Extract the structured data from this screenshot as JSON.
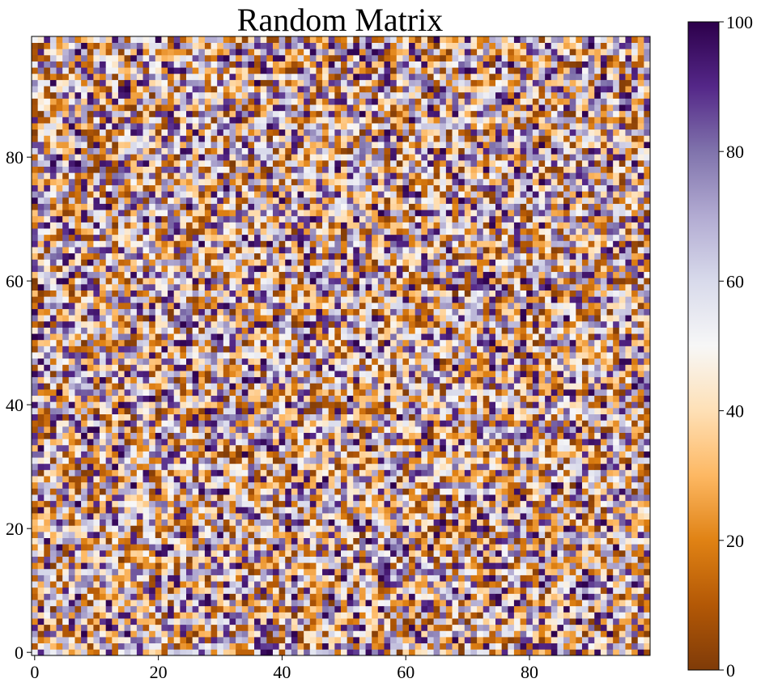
{
  "chart_data": {
    "type": "heatmap",
    "title": "Random Matrix",
    "rows": 100,
    "cols": 100,
    "value_range": [
      0,
      100
    ],
    "origin": "lower",
    "colormap": "PuOr",
    "x_ticks": [
      0,
      20,
      40,
      60,
      80
    ],
    "y_ticks": [
      0,
      20,
      40,
      60,
      80
    ],
    "colorbar_ticks": [
      0,
      20,
      40,
      60,
      80,
      100
    ],
    "colormap_stops": [
      "#7f3b08",
      "#b35806",
      "#e08214",
      "#fdb863",
      "#fee0b6",
      "#f7f7f7",
      "#d8daeb",
      "#b2abd2",
      "#8073ac",
      "#542788",
      "#2d004b"
    ],
    "grid": false
  }
}
